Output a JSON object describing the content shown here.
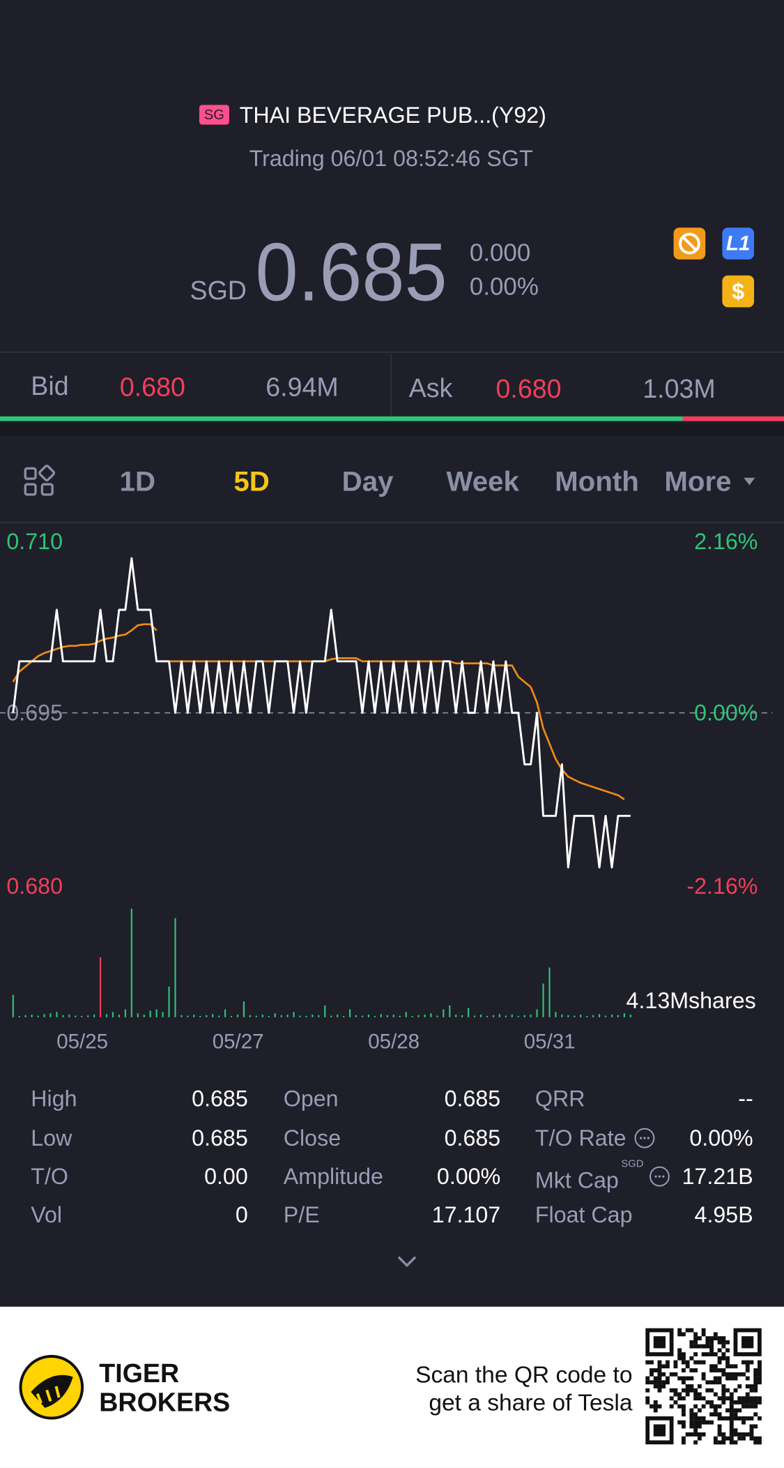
{
  "header": {
    "market": "SG",
    "title": "THAI BEVERAGE PUB...(Y92)",
    "status": "Trading 06/01 08:52:46 SGT"
  },
  "quote": {
    "currency": "SGD",
    "price": "0.685",
    "change": "0.000",
    "change_pct": "0.00%"
  },
  "icons": {
    "level": "L1",
    "currency": "$"
  },
  "order_book": {
    "bid_label": "Bid",
    "bid_price": "0.680",
    "bid_size": {
      "value": 6.94,
      "label": "6.94M"
    },
    "ask_label": "Ask",
    "ask_price": "0.680",
    "ask_size": {
      "value": 1.03,
      "label": "1.03M"
    },
    "bid_color": "#2fc577",
    "ask_color": "#f23f5a"
  },
  "tabs": {
    "items": [
      "1D",
      "5D",
      "Day",
      "Week",
      "Month",
      "More"
    ],
    "active": 1
  },
  "chart_data": {
    "type": "line",
    "ylim": [
      0.68,
      0.71
    ],
    "yticks": [
      {
        "value": 0.71,
        "label": "0.710"
      },
      0.695,
      {
        "value": 0.68,
        "label": "0.680"
      }
    ],
    "y2lim": [
      -2.16,
      2.16
    ],
    "y2ticks": [
      {
        "value": 2.16,
        "label": "2.16%"
      },
      {
        "value": 0,
        "label": "0.00%"
      },
      {
        "value": -2.16,
        "label": "-2.16%"
      }
    ],
    "x_labels": [
      "05/25",
      "05/27",
      "05/28",
      "05/31"
    ],
    "price": {
      "color": "#ffffff",
      "values": [
        0.695,
        0.7,
        0.7,
        0.7,
        0.7,
        0.7,
        0.7,
        0.705,
        0.7,
        0.7,
        0.7,
        0.7,
        0.7,
        0.7,
        0.705,
        0.7,
        0.7,
        0.705,
        0.705,
        0.71,
        0.705,
        0.705,
        0.705,
        0.7,
        0.7,
        0.7,
        0.695,
        0.7,
        0.695,
        0.7,
        0.695,
        0.7,
        0.695,
        0.7,
        0.695,
        0.7,
        0.695,
        0.7,
        0.695,
        0.7,
        0.7,
        0.695,
        0.7,
        0.7,
        0.7,
        0.695,
        0.7,
        0.695,
        0.7,
        0.7,
        0.7,
        0.705,
        0.7,
        0.7,
        0.7,
        0.7,
        0.695,
        0.7,
        0.695,
        0.7,
        0.695,
        0.7,
        0.695,
        0.7,
        0.695,
        0.7,
        0.695,
        0.7,
        0.695,
        0.7,
        0.7,
        0.695,
        0.7,
        0.695,
        0.695,
        0.7,
        0.695,
        0.7,
        0.695,
        0.7,
        0.695,
        0.695,
        0.69,
        0.69,
        0.695,
        0.685,
        0.685,
        0.685,
        0.69,
        0.68,
        0.685,
        0.685,
        0.685,
        0.685,
        0.68,
        0.685,
        0.68,
        0.685,
        0.685,
        0.685
      ]
    },
    "average": {
      "color": "#f08c12",
      "values": [
        0.698,
        0.699,
        0.6995,
        0.7,
        0.7005,
        0.7008,
        0.701,
        0.7012,
        0.7014,
        0.7015,
        0.7015,
        0.7016,
        0.7016,
        0.7017,
        0.702,
        0.7022,
        0.7023,
        0.7025,
        0.7026,
        0.703,
        0.7035,
        0.7036,
        0.7036,
        0.703,
        null,
        0.7,
        0.7,
        0.7,
        0.7,
        0.7,
        0.7,
        0.7,
        0.7,
        0.7,
        0.7,
        0.7,
        0.7,
        0.7,
        0.7,
        0.7,
        0.7,
        0.7,
        0.7,
        0.7,
        0.7,
        0.7,
        0.7,
        0.7,
        0.7,
        0.7,
        0.7,
        0.7002,
        0.7003,
        0.7003,
        0.7003,
        0.7003,
        0.7,
        0.7,
        0.7,
        0.7,
        0.7,
        0.7,
        0.7,
        0.7,
        0.7,
        0.7,
        0.7,
        0.7,
        0.7,
        0.7,
        0.7,
        0.6998,
        0.6998,
        0.6998,
        0.6998,
        0.6998,
        0.6998,
        0.6996,
        0.6996,
        0.6996,
        0.6996,
        0.6985,
        0.698,
        0.6975,
        0.696,
        0.6935,
        0.692,
        0.6905,
        0.6895,
        0.6888,
        0.6885,
        0.6882,
        0.688,
        0.6878,
        0.6876,
        0.6874,
        0.6872,
        0.687,
        0.6866,
        null
      ]
    },
    "volume": {
      "label": "4.13Mshares",
      "lim": [
        0,
        4.13
      ],
      "values": [
        0.85,
        0.05,
        0.08,
        0.1,
        0.06,
        0.12,
        0.15,
        0.2,
        0.08,
        0.1,
        0.06,
        0.05,
        0.07,
        0.1,
        2.28,
        0.12,
        0.2,
        0.1,
        0.3,
        4.13,
        0.15,
        0.1,
        0.25,
        0.3,
        0.2,
        1.17,
        3.77,
        0.08,
        0.06,
        0.1,
        0.05,
        0.08,
        0.12,
        0.06,
        0.3,
        0.05,
        0.1,
        0.6,
        0.08,
        0.06,
        0.1,
        0.05,
        0.15,
        0.08,
        0.1,
        0.2,
        0.06,
        0.05,
        0.1,
        0.08,
        0.45,
        0.06,
        0.1,
        0.05,
        0.3,
        0.08,
        0.06,
        0.1,
        0.05,
        0.12,
        0.08,
        0.1,
        0.06,
        0.2,
        0.05,
        0.08,
        0.1,
        0.15,
        0.06,
        0.3,
        0.45,
        0.1,
        0.08,
        0.35,
        0.06,
        0.1,
        0.05,
        0.08,
        0.12,
        0.06,
        0.1,
        0.05,
        0.08,
        0.1,
        0.3,
        1.28,
        1.89,
        0.2,
        0.1,
        0.08,
        0.06,
        0.1,
        0.05,
        0.08,
        0.12,
        0.06,
        0.1,
        0.08,
        0.15,
        0.1
      ],
      "colors": [
        "#2fc577",
        "#2fc577",
        "#2fc577",
        "#2fc577",
        "#2fc577",
        "#2fc577",
        "#2fc577",
        "#2fc577",
        "#2fc577",
        "#2fc577",
        "#2fc577",
        "#2fc577",
        "#2fc577",
        "#2fc577",
        "#f23f5a",
        "#2fc577",
        "#2fc577",
        "#2fc577",
        "#2fc577",
        "#2fc577",
        "#2fc577",
        "#2fc577",
        "#2fc577",
        "#2fc577",
        "#2fc577",
        "#2fc577",
        "#2fc577",
        "#2fc577",
        "#2fc577",
        "#2fc577",
        "#2fc577",
        "#2fc577",
        "#2fc577",
        "#2fc577",
        "#2fc577",
        "#2fc577",
        "#2fc577",
        "#2fc577",
        "#2fc577",
        "#2fc577",
        "#2fc577",
        "#2fc577",
        "#2fc577",
        "#2fc577",
        "#2fc577",
        "#2fc577",
        "#2fc577",
        "#2fc577",
        "#2fc577",
        "#2fc577",
        "#2fc577",
        "#2fc577",
        "#2fc577",
        "#2fc577",
        "#2fc577",
        "#2fc577",
        "#2fc577",
        "#2fc577",
        "#2fc577",
        "#2fc577",
        "#2fc577",
        "#2fc577",
        "#2fc577",
        "#2fc577",
        "#2fc577",
        "#2fc577",
        "#2fc577",
        "#2fc577",
        "#2fc577",
        "#2fc577",
        "#2fc577",
        "#2fc577",
        "#2fc577",
        "#2fc577",
        "#2fc577",
        "#2fc577",
        "#2fc577",
        "#2fc577",
        "#2fc577",
        "#2fc577",
        "#2fc577",
        "#2fc577",
        "#2fc577",
        "#2fc577",
        "#2fc577",
        "#2fc577",
        "#2fc577",
        "#2fc577",
        "#2fc577",
        "#2fc577",
        "#2fc577",
        "#2fc577",
        "#2fc577",
        "#2fc577",
        "#2fc577",
        "#2fc577",
        "#2fc577",
        "#2fc577",
        "#2fc577",
        "#2fc577"
      ]
    }
  },
  "stats": [
    [
      {
        "label": "High",
        "value": "0.685"
      },
      {
        "label": "Open",
        "value": "0.685"
      },
      {
        "label": "QRR",
        "value": "--"
      }
    ],
    [
      {
        "label": "Low",
        "value": "0.685"
      },
      {
        "label": "Close",
        "value": "0.685"
      },
      {
        "label": "T/O Rate",
        "value": "0.00%"
      }
    ],
    [
      {
        "label": "T/O",
        "value": "0.00"
      },
      {
        "label": "Amplitude",
        "value": "0.00%"
      },
      {
        "label": "Mkt Cap",
        "note": "SGD",
        "value": "17.21B"
      }
    ],
    [
      {
        "label": "Vol",
        "value": "0"
      },
      {
        "label": "P/E",
        "value": "17.107"
      },
      {
        "label": "Float Cap",
        "value": "4.95B"
      }
    ]
  ],
  "footer": {
    "brand_line1": "TIGER",
    "brand_line2": "BROKERS",
    "cta_line1": "Scan the QR code to",
    "cta_line2": "get a share of Tesla"
  }
}
